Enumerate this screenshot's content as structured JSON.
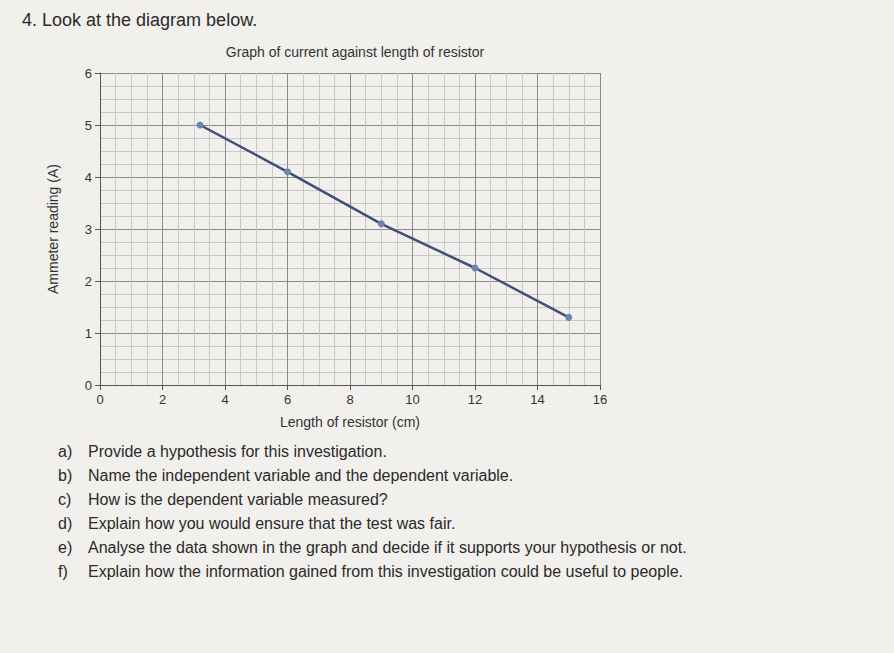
{
  "header": "4. Look at the diagram below.",
  "chart_data": {
    "type": "line",
    "title": "Graph of current against length of resistor",
    "xlabel": "Length of resistor (cm)",
    "ylabel": "Ammeter reading (A)",
    "x": [
      3.2,
      6,
      9,
      12,
      15
    ],
    "values": [
      5.0,
      4.1,
      3.1,
      2.25,
      1.3
    ],
    "color": "#3f4f7a",
    "marker": "circle",
    "line_style": "solid",
    "xlim": [
      0,
      16
    ],
    "xticks": [
      0,
      2,
      4,
      6,
      8,
      10,
      12,
      14,
      16
    ],
    "ylim": [
      0,
      6
    ],
    "yticks": [
      0,
      1,
      2,
      3,
      4,
      5,
      6
    ],
    "grid": true
  },
  "questions": [
    {
      "label": "a)",
      "text": "Provide a hypothesis for this investigation."
    },
    {
      "label": "b)",
      "text": "Name the independent variable and the dependent variable."
    },
    {
      "label": "c)",
      "text": "How is the dependent variable measured?"
    },
    {
      "label": "d)",
      "text": "Explain how you would ensure that the test was fair."
    },
    {
      "label": "e)",
      "text": "Analyse the data shown in the graph and decide if it supports your hypothesis or not."
    },
    {
      "label": "f)",
      "text": "Explain how the information gained from this investigation could be useful to people."
    }
  ]
}
